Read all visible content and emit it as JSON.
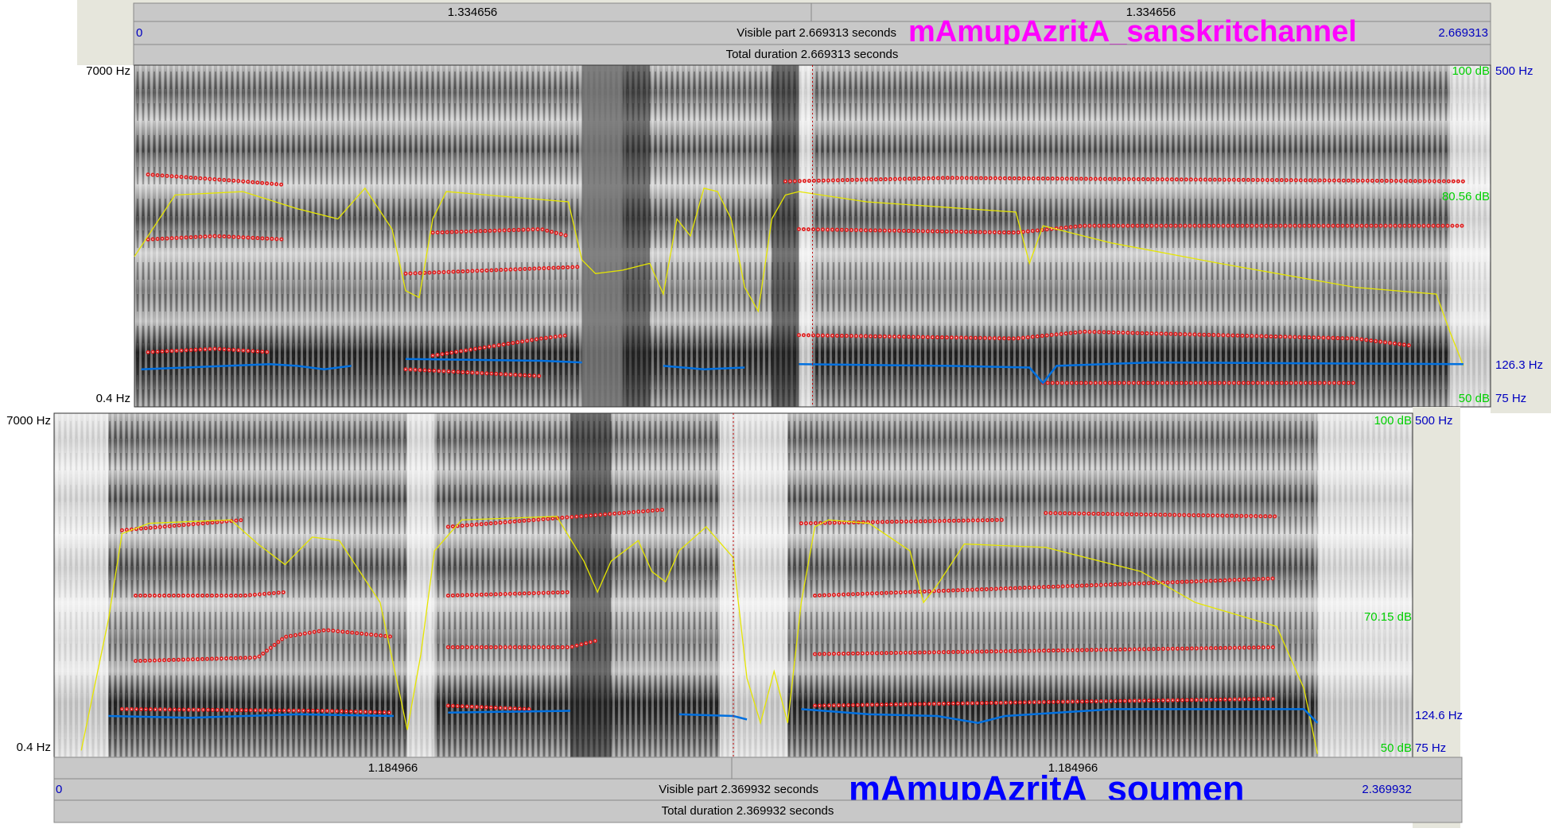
{
  "top_panel": {
    "title": "mAmupAzritA_sanskritchannel",
    "cursor_left": "1.334656",
    "cursor_right": "1.334656",
    "start": "0",
    "visible": "Visible part 2.669313 seconds",
    "end": "2.669313",
    "total": "Total duration 2.669313 seconds",
    "freq_top": "7000 Hz",
    "freq_bottom": "0.4 Hz",
    "db_top": "100 dB",
    "db_mid": "80.56 dB",
    "db_bottom": "50 dB",
    "pitch_top": "500 Hz",
    "pitch_mid": "126.3 Hz",
    "pitch_bottom": "75 Hz"
  },
  "bottom_panel": {
    "title": "mAmupAzritA_soumen",
    "cursor_left": "1.184966",
    "cursor_right": "1.184966",
    "start": "0",
    "visible": "Visible part 2.369932 seconds",
    "end": "2.369932",
    "total": "Total duration 2.369932 seconds",
    "freq_top": "7000 Hz",
    "freq_bottom": "0.4 Hz",
    "db_top": "100 dB",
    "db_mid": "70.15 dB",
    "db_bottom": "50 dB",
    "pitch_top": "500 Hz",
    "pitch_mid": "124.6 Hz",
    "pitch_bottom": "75 Hz"
  }
}
